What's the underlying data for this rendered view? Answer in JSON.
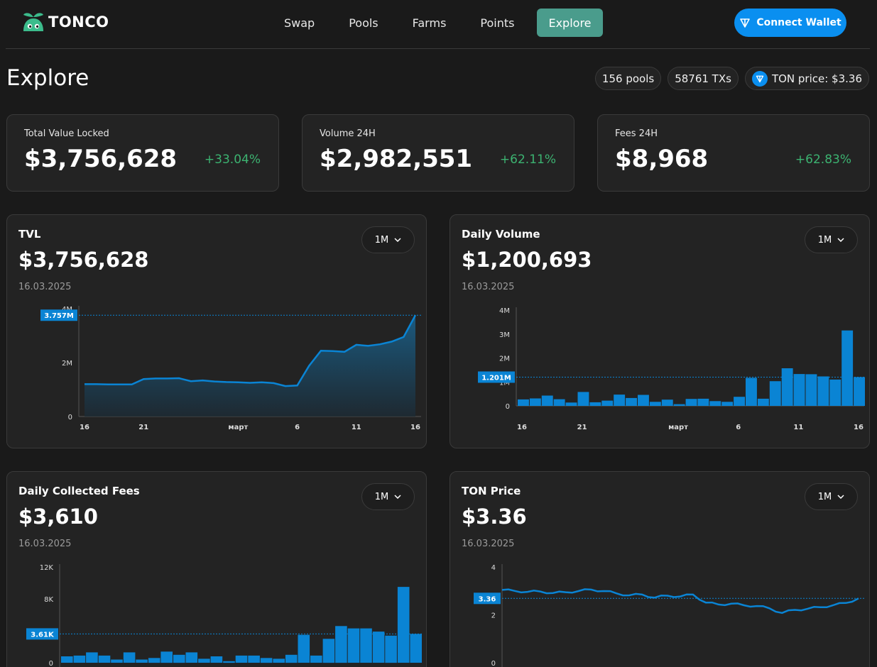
{
  "brand": {
    "name": "TONCO"
  },
  "nav": {
    "items": [
      {
        "label": "Swap",
        "active": false
      },
      {
        "label": "Pools",
        "active": false
      },
      {
        "label": "Farms",
        "active": false
      },
      {
        "label": "Points",
        "active": false
      },
      {
        "label": "Explore",
        "active": true
      }
    ],
    "connect_label": "Connect Wallet"
  },
  "page": {
    "title": "Explore",
    "pools": "156 pools",
    "txs": "58761 TXs",
    "ton_price": "TON price: $3.36"
  },
  "stats": [
    {
      "label": "Total Value Locked",
      "value": "$3,756,628",
      "change": "+33.04%"
    },
    {
      "label": "Volume 24H",
      "value": "$2,982,551",
      "change": "+62.11%"
    },
    {
      "label": "Fees 24H",
      "value": "$8,968",
      "change": "+62.83%"
    }
  ],
  "colors": {
    "accent": "#0a8ff0",
    "nav_active": "#4a9c8c",
    "positive": "#3cb371",
    "chart": "#0a84d4"
  },
  "charts": {
    "tvl": {
      "title": "TVL",
      "value": "$3,756,628",
      "date": "16.03.2025",
      "range": "1M"
    },
    "volume": {
      "title": "Daily Volume",
      "value": "$1,200,693",
      "date": "16.03.2025",
      "range": "1M"
    },
    "fees": {
      "title": "Daily Collected Fees",
      "value": "$3,610",
      "date": "16.03.2025",
      "range": "1M"
    },
    "price": {
      "title": "TON Price",
      "value": "$3.36",
      "date": "16.03.2025",
      "range": "1M"
    }
  },
  "chart_data": [
    {
      "id": "tvl",
      "type": "area",
      "x": [
        "16",
        "17",
        "18",
        "19",
        "20",
        "21",
        "22",
        "23",
        "24",
        "25",
        "26",
        "27",
        "28",
        "1",
        "2",
        "3",
        "4",
        "5",
        "6",
        "7",
        "8",
        "9",
        "10",
        "11",
        "12",
        "13",
        "14",
        "15",
        "16"
      ],
      "values": [
        1.2,
        1.2,
        1.19,
        1.19,
        1.19,
        1.39,
        1.41,
        1.41,
        1.42,
        1.31,
        1.34,
        1.3,
        1.28,
        1.27,
        1.25,
        1.27,
        1.24,
        1.13,
        1.15,
        1.88,
        2.44,
        2.43,
        2.4,
        2.66,
        2.62,
        2.68,
        2.78,
        2.95,
        3.757
      ],
      "x_ticks": [
        "16",
        "21",
        "март",
        "6",
        "11",
        "16"
      ],
      "y_ticks": [
        "0",
        "2M",
        "4M"
      ],
      "ylim": [
        0,
        4
      ],
      "marker_label": "3.757M"
    },
    {
      "id": "volume",
      "type": "bar",
      "values": [
        0.27,
        0.31,
        0.43,
        0.28,
        0.14,
        0.58,
        0.15,
        0.22,
        0.47,
        0.33,
        0.46,
        0.17,
        0.26,
        0.07,
        0.29,
        0.3,
        0.2,
        0.17,
        0.38,
        1.17,
        0.3,
        1.03,
        1.57,
        1.33,
        1.32,
        1.23,
        1.1,
        3.15,
        1.201
      ],
      "x_ticks": [
        "16",
        "21",
        "март",
        "6",
        "11",
        "16"
      ],
      "y_ticks": [
        "0",
        "1M",
        "2M",
        "3M",
        "4M"
      ],
      "ylim": [
        0,
        4
      ],
      "marker_label": "1.201M"
    },
    {
      "id": "fees",
      "type": "bar",
      "values": [
        0.8,
        0.9,
        1.3,
        0.9,
        0.4,
        1.3,
        0.4,
        0.6,
        1.4,
        1.0,
        1.3,
        0.5,
        0.8,
        0.2,
        0.9,
        0.9,
        0.6,
        0.5,
        1.0,
        3.5,
        0.9,
        3.0,
        4.6,
        4.3,
        4.3,
        3.9,
        3.4,
        9.5,
        3.61
      ],
      "x_ticks": [
        "16",
        "21",
        "март",
        "6",
        "11",
        "16"
      ],
      "y_ticks": [
        "0",
        "4K",
        "8K",
        "12K"
      ],
      "ylim": [
        0,
        12
      ],
      "marker_label": "3.61K"
    },
    {
      "id": "price",
      "type": "line",
      "values": [
        3.8,
        3.75,
        3.7,
        3.72,
        3.64,
        3.68,
        3.74,
        3.82,
        3.74,
        3.62,
        3.52,
        3.56,
        3.4,
        3.5,
        3.46,
        3.56,
        3.14,
        3.04,
        3.08,
        3.0,
        2.96,
        2.84,
        2.6,
        2.76,
        2.82,
        2.9,
        3.0,
        3.12,
        3.36
      ],
      "y_ticks": [
        "0",
        "2",
        "4"
      ],
      "ylim": [
        0,
        5
      ],
      "marker_label": "3.36"
    }
  ]
}
